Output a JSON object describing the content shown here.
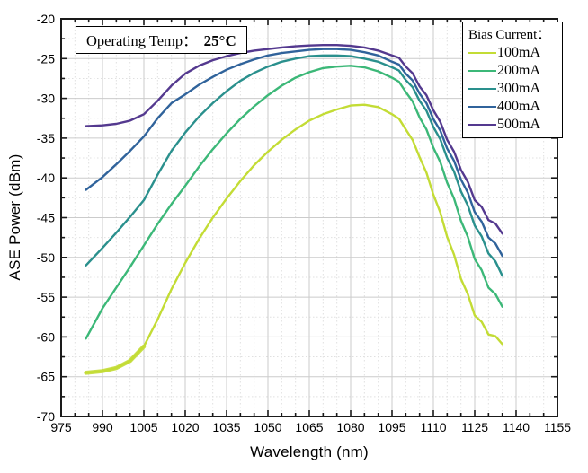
{
  "figure": {
    "background": "#ffffff",
    "frame_color": "#1a1a1a",
    "grid_major_color": "#cbcbcb",
    "grid_minor_color": "#e0e0e0",
    "text_color": "#000000"
  },
  "annotation": {
    "label": "Operating Temp：",
    "value": "25°C"
  },
  "legend": {
    "title": "Bias Current：",
    "items": [
      {
        "label": "100mA",
        "color": "#c3dc35"
      },
      {
        "label": "200mA",
        "color": "#3cb878"
      },
      {
        "label": "300mA",
        "color": "#2a908d"
      },
      {
        "label": "400mA",
        "color": "#30639b"
      },
      {
        "label": "500mA",
        "color": "#54398f"
      }
    ]
  },
  "chart_data": {
    "type": "line",
    "title": "",
    "xlabel": "Wavelength (nm)",
    "ylabel": "ASE Power (dBm)",
    "xlim": [
      975,
      1155
    ],
    "ylim": [
      -70,
      -20
    ],
    "x_major_step": 15,
    "x_minor_step": 5,
    "y_major_step": 5,
    "y_minor_step": 2.5,
    "x_ticks": [
      975,
      990,
      1005,
      1020,
      1035,
      1050,
      1065,
      1080,
      1095,
      1110,
      1125,
      1140,
      1155
    ],
    "y_ticks": [
      -20,
      -25,
      -30,
      -35,
      -40,
      -45,
      -50,
      -55,
      -60,
      -65,
      -70
    ],
    "grid": "major-solid, minor-dashed",
    "legend_position": "top-right",
    "annotation": "Operating Temp: 25°C",
    "descent_ripple_from_x": 1100,
    "x": [
      984,
      990,
      995,
      1000,
      1005,
      1010,
      1015,
      1020,
      1025,
      1030,
      1035,
      1040,
      1045,
      1050,
      1055,
      1060,
      1065,
      1070,
      1075,
      1080,
      1085,
      1090,
      1095,
      1100,
      1105,
      1110,
      1115,
      1120,
      1125,
      1130,
      1135
    ],
    "series": [
      {
        "name": "100mA",
        "color": "#c3dc35",
        "values": [
          -64.5,
          -64.3,
          -63.9,
          -63.0,
          -61.2,
          -57.8,
          -54.0,
          -50.7,
          -47.7,
          -45.0,
          -42.6,
          -40.4,
          -38.4,
          -36.7,
          -35.2,
          -33.9,
          -32.8,
          -32.0,
          -31.4,
          -30.9,
          -30.8,
          -31.1,
          -32.0,
          -33.9,
          -37.4,
          -42.1,
          -47.4,
          -52.7,
          -57.3,
          -59.7,
          -60.9
        ]
      },
      {
        "name": "200mA",
        "color": "#3cb878",
        "values": [
          -60.2,
          -56.4,
          -53.8,
          -51.2,
          -48.5,
          -45.8,
          -43.3,
          -41.0,
          -38.6,
          -36.4,
          -34.4,
          -32.6,
          -31.0,
          -29.6,
          -28.4,
          -27.4,
          -26.7,
          -26.2,
          -26.0,
          -25.9,
          -26.1,
          -26.6,
          -27.4,
          -29.2,
          -32.4,
          -36.2,
          -40.6,
          -45.4,
          -50.2,
          -53.8,
          -56.2
        ]
      },
      {
        "name": "300mA",
        "color": "#2a908d",
        "values": [
          -51.0,
          -48.8,
          -46.9,
          -44.9,
          -42.8,
          -39.6,
          -36.6,
          -34.3,
          -32.3,
          -30.6,
          -29.1,
          -27.8,
          -26.8,
          -26.0,
          -25.4,
          -25.0,
          -24.7,
          -24.6,
          -24.6,
          -24.7,
          -25.0,
          -25.4,
          -26.1,
          -27.7,
          -30.3,
          -33.6,
          -37.5,
          -41.7,
          -46.0,
          -49.5,
          -52.3
        ]
      },
      {
        "name": "400mA",
        "color": "#30639b",
        "values": [
          -41.5,
          -39.9,
          -38.3,
          -36.6,
          -34.8,
          -32.5,
          -30.6,
          -29.5,
          -28.3,
          -27.3,
          -26.4,
          -25.7,
          -25.1,
          -24.6,
          -24.3,
          -24.1,
          -23.9,
          -23.8,
          -23.8,
          -23.9,
          -24.2,
          -24.6,
          -25.4,
          -26.9,
          -29.4,
          -32.6,
          -36.3,
          -40.2,
          -44.3,
          -47.5,
          -49.8
        ]
      },
      {
        "name": "500mA",
        "color": "#54398f",
        "values": [
          -33.5,
          -33.4,
          -33.2,
          -32.8,
          -32.0,
          -30.3,
          -28.4,
          -26.9,
          -25.9,
          -25.2,
          -24.7,
          -24.3,
          -24.0,
          -23.8,
          -23.6,
          -23.45,
          -23.35,
          -23.3,
          -23.3,
          -23.4,
          -23.6,
          -24.0,
          -24.6,
          -26.0,
          -28.5,
          -31.5,
          -35.2,
          -39.0,
          -42.8,
          -45.3,
          -47.0
        ]
      }
    ]
  }
}
